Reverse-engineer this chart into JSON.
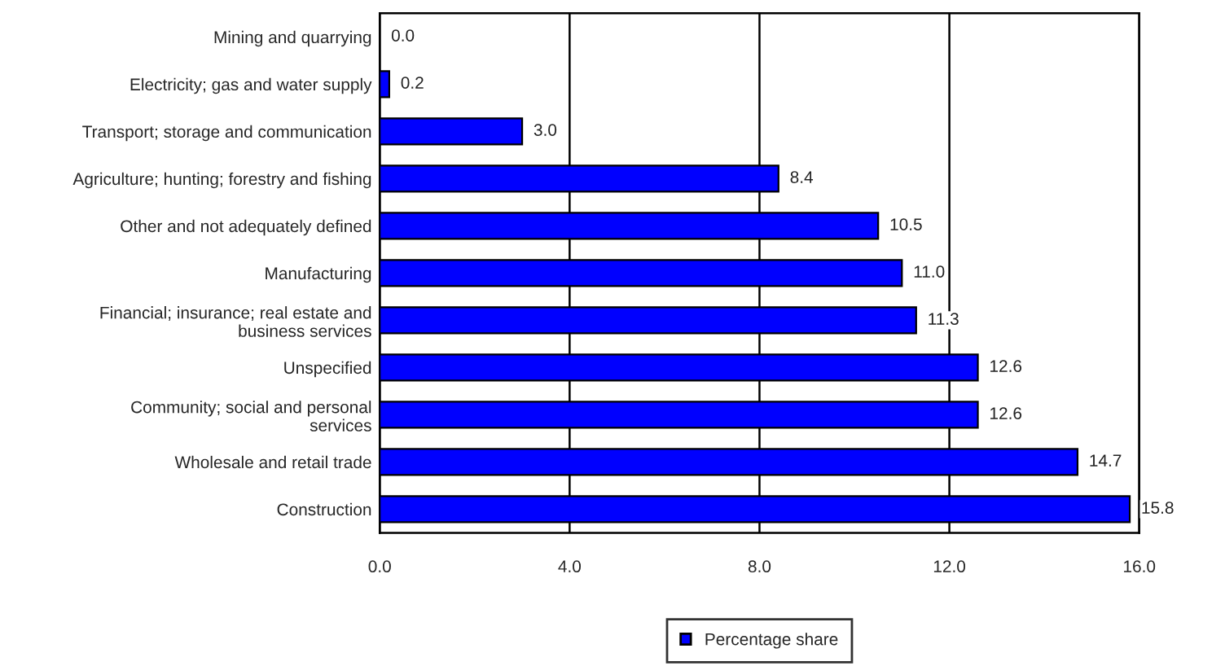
{
  "chart_data": {
    "type": "bar",
    "orientation": "horizontal",
    "categories": [
      "Mining and quarrying",
      "Electricity; gas and water supply",
      "Transport; storage and communication",
      "Agriculture; hunting; forestry and fishing",
      "Other and not adequately defined",
      "Manufacturing",
      "Financial; insurance; real estate and\nbusiness services",
      "Unspecified",
      "Community; social and personal\nservices",
      "Wholesale and retail trade",
      "Construction"
    ],
    "series": [
      {
        "name": "Percentage share",
        "color": "#0000ff",
        "values": [
          0.0,
          0.2,
          3.0,
          8.4,
          10.5,
          11.0,
          11.3,
          12.6,
          12.6,
          14.7,
          15.8
        ],
        "value_labels": [
          "0.0",
          "0.2",
          "3.0",
          "8.4",
          "10.5",
          "11.0",
          "11.3",
          "12.6",
          "12.6",
          "14.7",
          "15.8"
        ]
      }
    ],
    "xlim": [
      0,
      16
    ],
    "xticks": [
      {
        "value": 0,
        "label": "0.0"
      },
      {
        "value": 4,
        "label": "4.0"
      },
      {
        "value": 8,
        "label": "8.0"
      },
      {
        "value": 12,
        "label": "12.0"
      },
      {
        "value": 16,
        "label": "16.0"
      }
    ],
    "grid": "x",
    "legend": "bottom"
  }
}
